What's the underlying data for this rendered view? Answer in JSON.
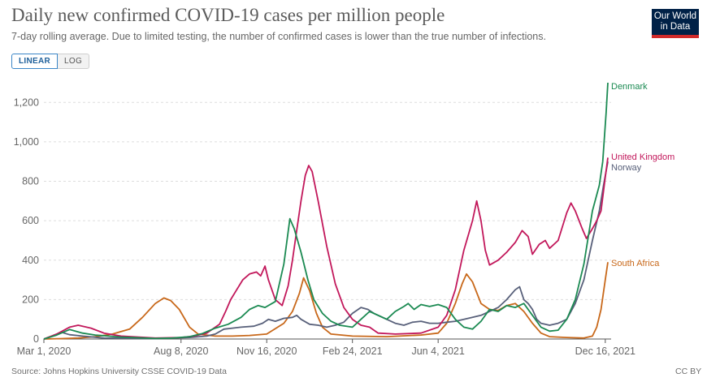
{
  "header": {
    "title": "Daily new confirmed COVID-19 cases per million people",
    "subtitle": "7-day rolling average. Due to limited testing, the number of confirmed cases is lower than the true number of infections.",
    "logo": "Our World in Data"
  },
  "controls": {
    "linear_label": "LINEAR",
    "log_label": "LOG"
  },
  "footer": {
    "source": "Source: Johns Hopkins University CSSE COVID-19 Data",
    "license": "CC BY"
  },
  "colors": {
    "Denmark": "#1b8a52",
    "United Kingdom": "#c2185b",
    "Norway": "#58607a",
    "South Africa": "#c8681a",
    "grid": "#dddddd",
    "axis": "#555555",
    "label": "#666666"
  },
  "chart_data": {
    "type": "line",
    "title": "Daily new confirmed COVID-19 cases per million people",
    "xlabel": "",
    "ylabel": "",
    "ylim": [
      0,
      1300
    ],
    "yticks": [
      0,
      200,
      400,
      600,
      800,
      1000,
      1200
    ],
    "ytick_labels": [
      "0",
      "200",
      "400",
      "600",
      "800",
      "1,000",
      "1,200"
    ],
    "x_unit": "days since Mar 1, 2020",
    "xlim": [
      0,
      658
    ],
    "xticks": [
      {
        "day": 0,
        "label": "Mar 1, 2020"
      },
      {
        "day": 160,
        "label": "Aug 8, 2020"
      },
      {
        "day": 260,
        "label": "Nov 16, 2020"
      },
      {
        "day": 360,
        "label": "Feb 24, 2021"
      },
      {
        "day": 460,
        "label": "Jun 4, 2021"
      },
      {
        "day": 655,
        "label": "Dec 16, 2021"
      }
    ],
    "grid": true,
    "legend": "inline-end-labels",
    "series": [
      {
        "name": "Denmark",
        "points": [
          [
            0,
            0
          ],
          [
            15,
            20
          ],
          [
            30,
            48
          ],
          [
            45,
            30
          ],
          [
            60,
            20
          ],
          [
            90,
            10
          ],
          [
            130,
            3
          ],
          [
            150,
            5
          ],
          [
            170,
            12
          ],
          [
            185,
            28
          ],
          [
            200,
            55
          ],
          [
            215,
            75
          ],
          [
            230,
            110
          ],
          [
            240,
            150
          ],
          [
            250,
            170
          ],
          [
            258,
            160
          ],
          [
            270,
            190
          ],
          [
            280,
            380
          ],
          [
            287,
            610
          ],
          [
            292,
            560
          ],
          [
            300,
            440
          ],
          [
            308,
            300
          ],
          [
            315,
            200
          ],
          [
            325,
            130
          ],
          [
            335,
            90
          ],
          [
            345,
            70
          ],
          [
            360,
            60
          ],
          [
            370,
            100
          ],
          [
            380,
            140
          ],
          [
            390,
            120
          ],
          [
            400,
            100
          ],
          [
            410,
            140
          ],
          [
            420,
            165
          ],
          [
            425,
            180
          ],
          [
            432,
            150
          ],
          [
            440,
            175
          ],
          [
            450,
            165
          ],
          [
            460,
            175
          ],
          [
            470,
            160
          ],
          [
            480,
            100
          ],
          [
            490,
            60
          ],
          [
            500,
            50
          ],
          [
            510,
            90
          ],
          [
            520,
            150
          ],
          [
            530,
            140
          ],
          [
            540,
            170
          ],
          [
            550,
            160
          ],
          [
            560,
            180
          ],
          [
            570,
            120
          ],
          [
            580,
            60
          ],
          [
            590,
            40
          ],
          [
            600,
            45
          ],
          [
            610,
            100
          ],
          [
            620,
            200
          ],
          [
            630,
            380
          ],
          [
            640,
            650
          ],
          [
            648,
            780
          ],
          [
            652,
            900
          ],
          [
            656,
            1150
          ],
          [
            658,
            1300
          ]
        ]
      },
      {
        "name": "United Kingdom",
        "points": [
          [
            0,
            0
          ],
          [
            15,
            25
          ],
          [
            30,
            60
          ],
          [
            40,
            70
          ],
          [
            55,
            55
          ],
          [
            70,
            30
          ],
          [
            90,
            15
          ],
          [
            130,
            5
          ],
          [
            160,
            8
          ],
          [
            175,
            15
          ],
          [
            190,
            30
          ],
          [
            205,
            75
          ],
          [
            212,
            140
          ],
          [
            218,
            200
          ],
          [
            225,
            250
          ],
          [
            232,
            300
          ],
          [
            240,
            330
          ],
          [
            248,
            340
          ],
          [
            253,
            320
          ],
          [
            258,
            370
          ],
          [
            262,
            300
          ],
          [
            270,
            200
          ],
          [
            278,
            170
          ],
          [
            285,
            270
          ],
          [
            290,
            400
          ],
          [
            295,
            550
          ],
          [
            300,
            700
          ],
          [
            305,
            830
          ],
          [
            309,
            880
          ],
          [
            313,
            850
          ],
          [
            320,
            700
          ],
          [
            330,
            470
          ],
          [
            340,
            280
          ],
          [
            350,
            160
          ],
          [
            360,
            100
          ],
          [
            370,
            70
          ],
          [
            380,
            60
          ],
          [
            390,
            30
          ],
          [
            410,
            25
          ],
          [
            440,
            30
          ],
          [
            460,
            60
          ],
          [
            470,
            120
          ],
          [
            480,
            250
          ],
          [
            490,
            450
          ],
          [
            500,
            600
          ],
          [
            505,
            700
          ],
          [
            510,
            600
          ],
          [
            515,
            450
          ],
          [
            520,
            375
          ],
          [
            530,
            400
          ],
          [
            540,
            440
          ],
          [
            550,
            490
          ],
          [
            558,
            550
          ],
          [
            565,
            520
          ],
          [
            570,
            430
          ],
          [
            578,
            480
          ],
          [
            585,
            500
          ],
          [
            590,
            460
          ],
          [
            600,
            500
          ],
          [
            610,
            640
          ],
          [
            615,
            690
          ],
          [
            620,
            650
          ],
          [
            628,
            560
          ],
          [
            633,
            510
          ],
          [
            640,
            560
          ],
          [
            645,
            600
          ],
          [
            650,
            650
          ],
          [
            655,
            820
          ],
          [
            658,
            920
          ]
        ]
      },
      {
        "name": "Norway",
        "points": [
          [
            0,
            0
          ],
          [
            10,
            15
          ],
          [
            20,
            35
          ],
          [
            30,
            22
          ],
          [
            45,
            15
          ],
          [
            70,
            5
          ],
          [
            130,
            2
          ],
          [
            170,
            8
          ],
          [
            190,
            15
          ],
          [
            200,
            25
          ],
          [
            210,
            50
          ],
          [
            220,
            55
          ],
          [
            230,
            60
          ],
          [
            245,
            65
          ],
          [
            255,
            80
          ],
          [
            262,
            100
          ],
          [
            270,
            90
          ],
          [
            280,
            105
          ],
          [
            290,
            110
          ],
          [
            295,
            120
          ],
          [
            300,
            100
          ],
          [
            310,
            75
          ],
          [
            320,
            70
          ],
          [
            330,
            60
          ],
          [
            340,
            70
          ],
          [
            350,
            85
          ],
          [
            360,
            130
          ],
          [
            370,
            160
          ],
          [
            378,
            150
          ],
          [
            385,
            130
          ],
          [
            390,
            120
          ],
          [
            400,
            100
          ],
          [
            410,
            80
          ],
          [
            420,
            70
          ],
          [
            430,
            85
          ],
          [
            440,
            90
          ],
          [
            450,
            80
          ],
          [
            460,
            80
          ],
          [
            470,
            85
          ],
          [
            480,
            90
          ],
          [
            490,
            100
          ],
          [
            500,
            110
          ],
          [
            510,
            120
          ],
          [
            520,
            140
          ],
          [
            530,
            160
          ],
          [
            540,
            200
          ],
          [
            550,
            250
          ],
          [
            555,
            265
          ],
          [
            560,
            200
          ],
          [
            565,
            180
          ],
          [
            570,
            150
          ],
          [
            575,
            100
          ],
          [
            580,
            80
          ],
          [
            590,
            70
          ],
          [
            600,
            80
          ],
          [
            610,
            100
          ],
          [
            620,
            180
          ],
          [
            630,
            300
          ],
          [
            640,
            500
          ],
          [
            648,
            650
          ],
          [
            653,
            780
          ],
          [
            658,
            900
          ]
        ]
      },
      {
        "name": "South Africa",
        "points": [
          [
            0,
            0
          ],
          [
            20,
            2
          ],
          [
            40,
            5
          ],
          [
            60,
            12
          ],
          [
            80,
            25
          ],
          [
            100,
            50
          ],
          [
            115,
            110
          ],
          [
            130,
            180
          ],
          [
            140,
            208
          ],
          [
            148,
            195
          ],
          [
            158,
            150
          ],
          [
            170,
            60
          ],
          [
            180,
            25
          ],
          [
            200,
            15
          ],
          [
            220,
            15
          ],
          [
            240,
            18
          ],
          [
            260,
            25
          ],
          [
            280,
            80
          ],
          [
            290,
            140
          ],
          [
            298,
            230
          ],
          [
            303,
            310
          ],
          [
            310,
            245
          ],
          [
            318,
            130
          ],
          [
            325,
            60
          ],
          [
            335,
            25
          ],
          [
            360,
            15
          ],
          [
            400,
            12
          ],
          [
            440,
            20
          ],
          [
            460,
            30
          ],
          [
            470,
            80
          ],
          [
            480,
            180
          ],
          [
            488,
            280
          ],
          [
            493,
            330
          ],
          [
            500,
            290
          ],
          [
            510,
            180
          ],
          [
            520,
            150
          ],
          [
            530,
            145
          ],
          [
            540,
            170
          ],
          [
            550,
            180
          ],
          [
            560,
            140
          ],
          [
            570,
            80
          ],
          [
            580,
            30
          ],
          [
            590,
            12
          ],
          [
            610,
            8
          ],
          [
            630,
            5
          ],
          [
            640,
            15
          ],
          [
            645,
            60
          ],
          [
            650,
            150
          ],
          [
            655,
            300
          ],
          [
            658,
            390
          ]
        ]
      }
    ],
    "end_labels": [
      "Denmark",
      "United Kingdom",
      "Norway",
      "South Africa"
    ]
  }
}
